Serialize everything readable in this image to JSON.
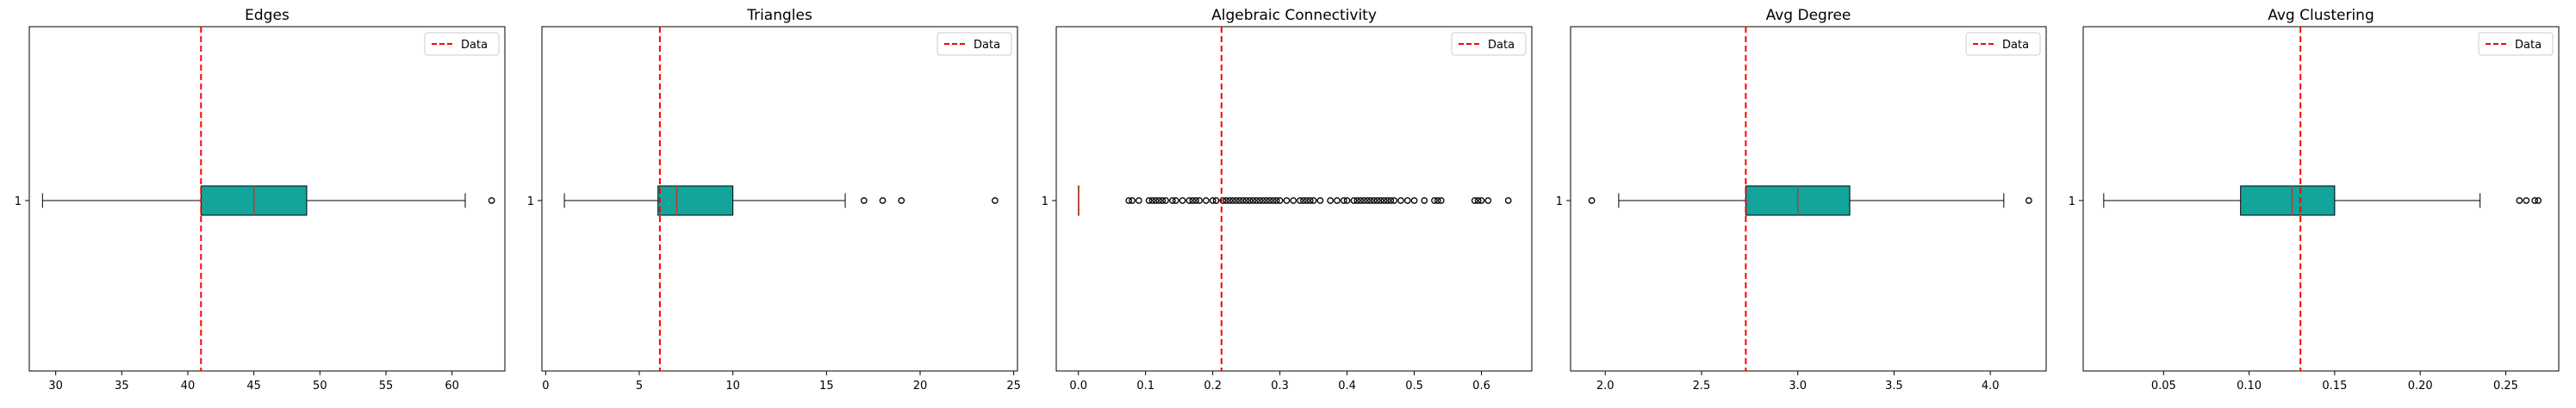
{
  "chart_data": [
    {
      "type": "boxplot",
      "title": "Edges",
      "category_label": "1",
      "xlim": [
        28,
        64
      ],
      "xticks": [
        30,
        35,
        40,
        45,
        50,
        55,
        60
      ],
      "box": {
        "whisker_low": 29,
        "q1": 41,
        "median": 45,
        "q3": 49,
        "whisker_high": 61
      },
      "outliers": [
        63
      ],
      "reference_line": {
        "value": 41,
        "label": "Data",
        "color": "#ff0000"
      },
      "box_color": "#13a59b",
      "legend": "top-right"
    },
    {
      "type": "boxplot",
      "title": "Triangles",
      "category_label": "1",
      "xlim": [
        -0.2,
        25.2
      ],
      "xticks": [
        0,
        5,
        10,
        15,
        20,
        25
      ],
      "box": {
        "whisker_low": 1,
        "q1": 6,
        "median": 7,
        "q3": 10,
        "whisker_high": 16
      },
      "outliers": [
        17,
        18,
        19,
        24
      ],
      "reference_line": {
        "value": 6.1,
        "label": "Data",
        "color": "#ff0000"
      },
      "box_color": "#13a59b",
      "legend": "top-right"
    },
    {
      "type": "boxplot",
      "title": "Algebraic Connectivity",
      "category_label": "1",
      "xlim": [
        -0.033,
        0.675
      ],
      "xticks": [
        0.0,
        0.1,
        0.2,
        0.3,
        0.4,
        0.5,
        0.6
      ],
      "xtick_labels": [
        "0.0",
        "0.1",
        "0.2",
        "0.3",
        "0.4",
        "0.5",
        "0.6"
      ],
      "box": {
        "whisker_low": 0.0,
        "q1": 0.0,
        "median": 0.0,
        "q3": 0.0,
        "whisker_high": 0.0
      },
      "outliers": [
        0.075,
        0.08,
        0.09,
        0.105,
        0.11,
        0.115,
        0.12,
        0.125,
        0.13,
        0.14,
        0.145,
        0.155,
        0.165,
        0.17,
        0.175,
        0.18,
        0.19,
        0.2,
        0.205,
        0.215,
        0.22,
        0.225,
        0.23,
        0.235,
        0.24,
        0.245,
        0.25,
        0.255,
        0.26,
        0.265,
        0.27,
        0.275,
        0.28,
        0.285,
        0.29,
        0.295,
        0.3,
        0.31,
        0.32,
        0.33,
        0.335,
        0.34,
        0.345,
        0.35,
        0.36,
        0.375,
        0.385,
        0.395,
        0.4,
        0.41,
        0.415,
        0.42,
        0.425,
        0.43,
        0.435,
        0.44,
        0.445,
        0.45,
        0.455,
        0.46,
        0.465,
        0.47,
        0.48,
        0.49,
        0.5,
        0.515,
        0.53,
        0.535,
        0.54,
        0.59,
        0.595,
        0.6,
        0.61,
        0.64
      ],
      "reference_line": {
        "value": 0.213,
        "label": "Data",
        "color": "#ff0000"
      },
      "box_color": "#13a59b",
      "legend": "top-right"
    },
    {
      "type": "boxplot",
      "title": "Avg Degree",
      "category_label": "1",
      "xlim": [
        1.82,
        4.29
      ],
      "xticks": [
        2.0,
        2.5,
        3.0,
        3.5,
        4.0
      ],
      "xtick_labels": [
        "2.0",
        "2.5",
        "3.0",
        "3.5",
        "4.0"
      ],
      "box": {
        "whisker_low": 2.07,
        "q1": 2.73,
        "median": 3.0,
        "q3": 3.27,
        "whisker_high": 4.07
      },
      "outliers": [
        1.93,
        4.2
      ],
      "reference_line": {
        "value": 2.73,
        "label": "Data",
        "color": "#ff0000"
      },
      "box_color": "#13a59b",
      "legend": "top-right"
    },
    {
      "type": "boxplot",
      "title": "Avg Clustering",
      "category_label": "1",
      "xlim": [
        0.003,
        0.281
      ],
      "xticks": [
        0.05,
        0.1,
        0.15,
        0.2,
        0.25
      ],
      "xtick_labels": [
        "0.05",
        "0.10",
        "0.15",
        "0.20",
        "0.25"
      ],
      "box": {
        "whisker_low": 0.015,
        "q1": 0.095,
        "median": 0.125,
        "q3": 0.15,
        "whisker_high": 0.235
      },
      "outliers": [
        0.258,
        0.262,
        0.267,
        0.269
      ],
      "reference_line": {
        "value": 0.13,
        "label": "Data",
        "color": "#ff0000"
      },
      "box_color": "#13a59b",
      "legend": "top-right"
    }
  ]
}
